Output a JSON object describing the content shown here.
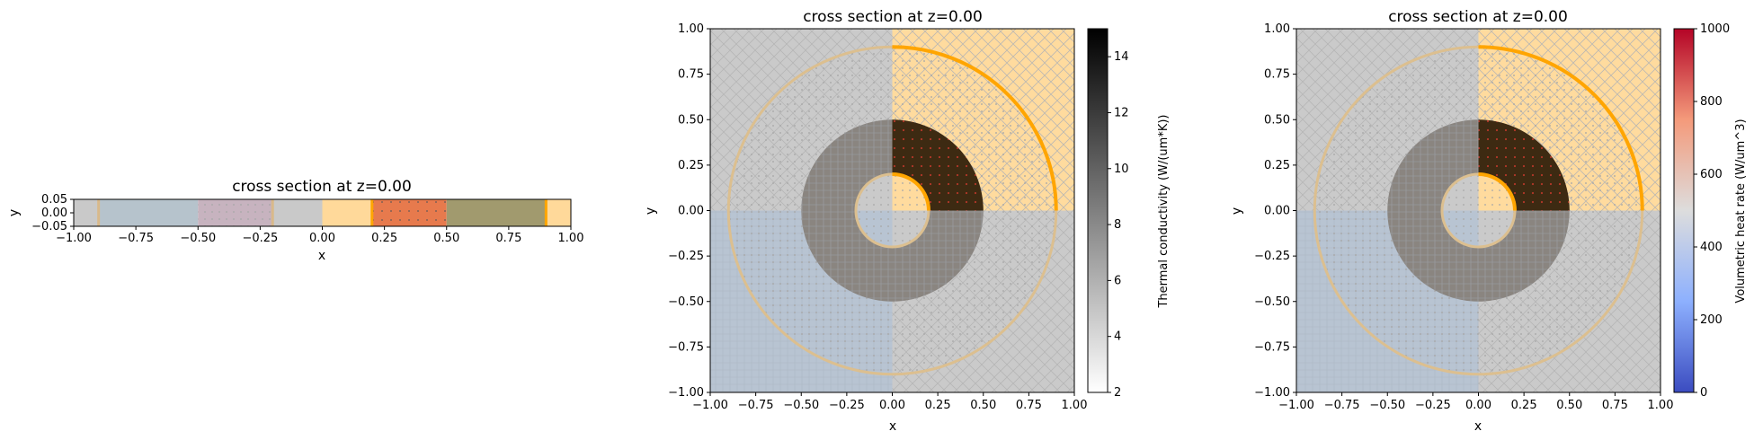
{
  "chart_data": [
    {
      "type": "heatmap",
      "title": "cross section at z=0.00",
      "xlabel": "x",
      "ylabel": "y",
      "xlim": [
        -1.0,
        1.0
      ],
      "ylim": [
        -0.05,
        0.05
      ],
      "x_ticks": [
        "−1.00",
        "−0.75",
        "−0.50",
        "−0.25",
        "0.00",
        "0.25",
        "0.50",
        "0.75",
        "1.00"
      ],
      "y_ticks": [
        "−0.05",
        "0.00",
        "0.05"
      ],
      "segments": [
        {
          "x": [
            -1.0,
            -0.9
          ],
          "color": "#c9c9c9"
        },
        {
          "x": [
            -0.9,
            -0.5
          ],
          "color": "#b6c3cc"
        },
        {
          "x": [
            -0.5,
            -0.2
          ],
          "color": "#c7b3bf"
        },
        {
          "x": [
            -0.2,
            0.0
          ],
          "color": "#c9c9c9"
        },
        {
          "x": [
            0.0,
            0.2
          ],
          "color": "#ffd99a"
        },
        {
          "x": [
            0.2,
            0.5
          ],
          "color": "#e77a4d"
        },
        {
          "x": [
            0.5,
            0.9
          ],
          "color": "#a19a6e"
        },
        {
          "x": [
            0.9,
            1.0
          ],
          "color": "#ffd99a"
        }
      ],
      "boundaries": [
        {
          "x": -0.9,
          "color": "#d9b98a"
        },
        {
          "x": -0.2,
          "color": "#d9b98a"
        },
        {
          "x": 0.2,
          "color": "#ffa500"
        },
        {
          "x": 0.9,
          "color": "#ffa500"
        }
      ]
    },
    {
      "type": "heatmap",
      "title": "cross section at z=0.00",
      "xlabel": "x",
      "ylabel": "y",
      "xlim": [
        -1.0,
        1.0
      ],
      "ylim": [
        -1.0,
        1.0
      ],
      "x_ticks": [
        "−1.00",
        "−0.75",
        "−0.50",
        "−0.25",
        "0.00",
        "0.25",
        "0.50",
        "0.75",
        "1.00"
      ],
      "y_ticks": [
        "−1.00",
        "−0.75",
        "−0.50",
        "−0.25",
        "0.00",
        "0.25",
        "0.50",
        "0.75",
        "1.00"
      ],
      "quadrant_colors": {
        "top_left": "#cacaca",
        "top_right": "#ffdb9e",
        "bottom_left": "#b8c4d2",
        "bottom_right": "#cacaca"
      },
      "rings": {
        "inner_radius": 0.2,
        "annulus": [
          0.2,
          0.5
        ],
        "outer_radius": 0.9
      },
      "annulus_colors": {
        "top_right": "#3d2a12",
        "other": "#8a8580"
      },
      "colorbar": {
        "label": "Thermal conductivity (W/(um*K))",
        "min": 2,
        "max": 15,
        "ticks": [
          2,
          4,
          6,
          8,
          10,
          12,
          14
        ],
        "cmap": [
          "#ffffff",
          "#000000"
        ]
      }
    },
    {
      "type": "heatmap",
      "title": "cross section at z=0.00",
      "xlabel": "x",
      "ylabel": "y",
      "xlim": [
        -1.0,
        1.0
      ],
      "ylim": [
        -1.0,
        1.0
      ],
      "x_ticks": [
        "−1.00",
        "−0.75",
        "−0.50",
        "−0.25",
        "0.00",
        "0.25",
        "0.50",
        "0.75",
        "1.00"
      ],
      "y_ticks": [
        "−1.00",
        "−0.75",
        "−0.50",
        "−0.25",
        "0.00",
        "0.25",
        "0.50",
        "0.75",
        "1.00"
      ],
      "quadrant_colors": {
        "top_left": "#cacaca",
        "top_right": "#ffdb9e",
        "bottom_left": "#b8c4d2",
        "bottom_right": "#cacaca"
      },
      "rings": {
        "inner_radius": 0.2,
        "annulus": [
          0.2,
          0.5
        ],
        "outer_radius": 0.9
      },
      "annulus_colors": {
        "top_right": "#3d2a12",
        "other": "#8a8580"
      },
      "colorbar": {
        "label": "Volumetric heat rate (W/um^3)",
        "min": 0,
        "max": 1000,
        "ticks": [
          0,
          200,
          400,
          600,
          800,
          1000
        ],
        "cmap": [
          "#3b4cc0",
          "#dddddd",
          "#b40426"
        ]
      }
    }
  ]
}
